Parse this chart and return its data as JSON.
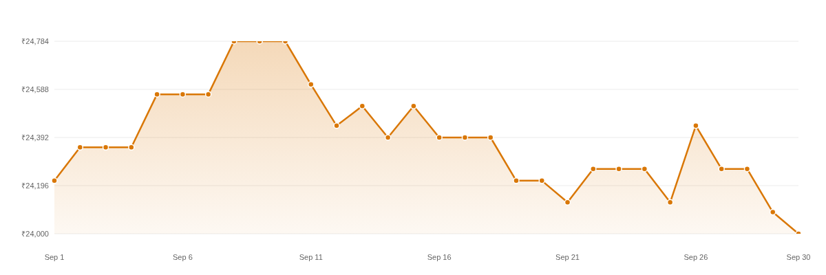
{
  "chart_data": {
    "type": "area",
    "categories": [
      "Sep 1",
      null,
      null,
      null,
      null,
      "Sep 6",
      null,
      null,
      null,
      null,
      "Sep 11",
      null,
      null,
      null,
      null,
      "Sep 16",
      null,
      null,
      null,
      null,
      "Sep 21",
      null,
      null,
      null,
      null,
      "Sep 26",
      null,
      null,
      null,
      "Sep 30"
    ],
    "values": [
      24216,
      24352,
      24352,
      24352,
      24568,
      24568,
      24568,
      24784,
      24784,
      24784,
      24608,
      24440,
      24520,
      24392,
      24520,
      24392,
      24392,
      24392,
      24216,
      24216,
      24128,
      24264,
      24264,
      24264,
      24128,
      24440,
      24264,
      24264,
      24088,
      24000
    ],
    "color": "#d97706",
    "ylim": [
      24000,
      24784
    ],
    "yticks": [
      {
        "value": 24000,
        "label": "₹24,000"
      },
      {
        "value": 24196,
        "label": "₹24,196"
      },
      {
        "value": 24392,
        "label": "₹24,392"
      },
      {
        "value": 24588,
        "label": "₹24,588"
      },
      {
        "value": 24784,
        "label": "₹24,784"
      }
    ],
    "grid": "y",
    "marker": "circle"
  }
}
